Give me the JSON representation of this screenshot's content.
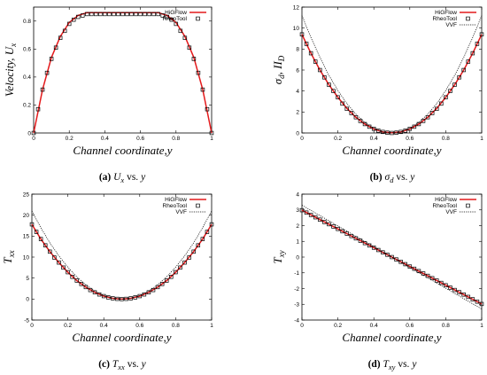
{
  "legend": {
    "entries": [
      {
        "label": "HiGFlow",
        "style": "line",
        "color": "#e41a1c"
      },
      {
        "label": "RheoTool",
        "style": "square-marker",
        "color": "#000000"
      },
      {
        "label": "VVF",
        "style": "dotted",
        "color": "#000000"
      }
    ],
    "placement": "top-right"
  },
  "captions": [
    {
      "id": "a",
      "letter": "(a)",
      "var": "U",
      "sub": "x",
      "vs": "vs.",
      "ax": "y"
    },
    {
      "id": "b",
      "letter": "(b)",
      "var": "σ",
      "sub": "d",
      "vs": "vs.",
      "ax": "y"
    },
    {
      "id": "c",
      "letter": "(c)",
      "var": "T",
      "sub": "xx",
      "vs": "vs.",
      "ax": "y"
    },
    {
      "id": "d",
      "letter": "(d)",
      "var": "T",
      "sub": "xy",
      "vs": "vs.",
      "ax": "y"
    }
  ],
  "chart_data": [
    {
      "id": "a",
      "type": "line",
      "xlabel": "Channel coordinate,y",
      "ylabel": "Velocity, U",
      "ylabel_sub": "x",
      "xlim": [
        0,
        1
      ],
      "ylim": [
        0,
        0.9
      ],
      "xticks": [
        "0",
        "0.2",
        "0.4",
        "0.6",
        "0.8",
        "1"
      ],
      "yticks": [
        "0",
        "0.2",
        "0.4",
        "0.6",
        "0.8"
      ],
      "yticks_values": [
        0,
        0.2,
        0.4,
        0.6,
        0.8
      ],
      "legend_entries": [
        "HiGFlow",
        "RheoTool"
      ],
      "series": [
        {
          "name": "HiGFlow",
          "x": [
            0,
            0.05,
            0.1,
            0.15,
            0.2,
            0.25,
            0.3,
            0.35,
            0.4,
            0.45,
            0.5,
            0.55,
            0.6,
            0.65,
            0.7,
            0.75,
            0.8,
            0.85,
            0.9,
            0.95,
            1
          ],
          "y": [
            0,
            0.31,
            0.54,
            0.69,
            0.79,
            0.84,
            0.86,
            0.86,
            0.86,
            0.86,
            0.86,
            0.86,
            0.86,
            0.86,
            0.86,
            0.84,
            0.79,
            0.69,
            0.54,
            0.31,
            0
          ]
        },
        {
          "name": "RheoTool",
          "x": [
            0,
            0.025,
            0.05,
            0.075,
            0.1,
            0.125,
            0.15,
            0.175,
            0.2,
            0.225,
            0.25,
            0.275,
            0.3,
            0.325,
            0.35,
            0.375,
            0.4,
            0.425,
            0.45,
            0.475,
            0.5,
            0.525,
            0.55,
            0.575,
            0.6,
            0.625,
            0.65,
            0.675,
            0.7,
            0.725,
            0.75,
            0.775,
            0.8,
            0.825,
            0.85,
            0.875,
            0.9,
            0.925,
            0.95,
            0.975,
            1
          ],
          "y": [
            0,
            0.17,
            0.31,
            0.43,
            0.53,
            0.61,
            0.68,
            0.73,
            0.78,
            0.81,
            0.83,
            0.84,
            0.85,
            0.85,
            0.85,
            0.85,
            0.85,
            0.85,
            0.85,
            0.85,
            0.85,
            0.85,
            0.85,
            0.85,
            0.85,
            0.85,
            0.85,
            0.85,
            0.85,
            0.84,
            0.83,
            0.81,
            0.78,
            0.73,
            0.68,
            0.61,
            0.53,
            0.43,
            0.31,
            0.17,
            0
          ]
        }
      ]
    },
    {
      "id": "b",
      "type": "line",
      "xlabel": "Channel coordinate,y",
      "ylabel": "σ",
      "ylabel_sub": "d",
      "ylabel_extra": ", II",
      "ylabel_extra_sub": "D",
      "xlim": [
        0,
        1
      ],
      "ylim": [
        0,
        12
      ],
      "xticks": [
        "0",
        "0.2",
        "0.4",
        "0.6",
        "0.8",
        "1"
      ],
      "yticks": [
        "0",
        "2",
        "4",
        "6",
        "8",
        "10",
        "12"
      ],
      "yticks_values": [
        0,
        2,
        4,
        6,
        8,
        10,
        12
      ],
      "legend_entries": [
        "HiGFlow",
        "RheoTool",
        "VVF"
      ],
      "series": [
        {
          "name": "HiGFlow",
          "x": [
            0,
            0.05,
            0.1,
            0.15,
            0.2,
            0.25,
            0.3,
            0.35,
            0.4,
            0.45,
            0.5,
            0.55,
            0.6,
            0.65,
            0.7,
            0.75,
            0.8,
            0.85,
            0.9,
            0.95,
            1
          ],
          "y": [
            9.4,
            7.6,
            6.0,
            4.6,
            3.4,
            2.35,
            1.5,
            0.85,
            0.38,
            0.1,
            0.02,
            0.1,
            0.38,
            0.85,
            1.5,
            2.35,
            3.4,
            4.6,
            6.0,
            7.6,
            9.4
          ]
        },
        {
          "name": "RheoTool",
          "x": [
            0,
            0.025,
            0.05,
            0.075,
            0.1,
            0.125,
            0.15,
            0.175,
            0.2,
            0.225,
            0.25,
            0.275,
            0.3,
            0.325,
            0.35,
            0.375,
            0.4,
            0.425,
            0.45,
            0.475,
            0.5,
            0.525,
            0.55,
            0.575,
            0.6,
            0.625,
            0.65,
            0.675,
            0.7,
            0.725,
            0.75,
            0.775,
            0.8,
            0.825,
            0.85,
            0.875,
            0.9,
            0.925,
            0.95,
            0.975,
            1
          ],
          "y": [
            9.4,
            8.5,
            7.6,
            6.8,
            6.0,
            5.3,
            4.6,
            4.0,
            3.4,
            2.8,
            2.3,
            1.9,
            1.5,
            1.15,
            0.85,
            0.6,
            0.4,
            0.22,
            0.1,
            0.03,
            0.0,
            0.03,
            0.1,
            0.22,
            0.4,
            0.6,
            0.85,
            1.15,
            1.5,
            1.9,
            2.3,
            2.8,
            3.4,
            4.0,
            4.6,
            5.3,
            6.0,
            6.8,
            7.6,
            8.5,
            9.4
          ]
        },
        {
          "name": "VVF",
          "x": [
            0,
            0.05,
            0.1,
            0.15,
            0.2,
            0.25,
            0.3,
            0.35,
            0.4,
            0.45,
            0.5,
            0.55,
            0.6,
            0.65,
            0.7,
            0.75,
            0.8,
            0.85,
            0.9,
            0.95,
            1
          ],
          "y": [
            11.2,
            9.1,
            7.2,
            5.5,
            4.05,
            2.8,
            1.8,
            1.0,
            0.45,
            0.11,
            0.0,
            0.11,
            0.45,
            1.0,
            1.8,
            2.8,
            4.05,
            5.5,
            7.2,
            9.1,
            11.2
          ]
        }
      ]
    },
    {
      "id": "c",
      "type": "line",
      "xlabel": "Channel coordinate,y",
      "ylabel": "T",
      "ylabel_sub": "xx",
      "xlim": [
        0,
        1
      ],
      "ylim": [
        -5,
        25
      ],
      "xticks": [
        "0",
        "0.2",
        "0.4",
        "0.6",
        "0.8",
        "1"
      ],
      "yticks": [
        "-5",
        "0",
        "5",
        "10",
        "15",
        "20",
        "25"
      ],
      "yticks_values": [
        -5,
        0,
        5,
        10,
        15,
        20,
        25
      ],
      "legend_entries": [
        "HiGFlow",
        "RheoTool",
        "VVF"
      ],
      "series": [
        {
          "name": "HiGFlow",
          "x": [
            0,
            0.05,
            0.1,
            0.15,
            0.2,
            0.25,
            0.3,
            0.35,
            0.4,
            0.45,
            0.5,
            0.55,
            0.6,
            0.65,
            0.7,
            0.75,
            0.8,
            0.85,
            0.9,
            0.95,
            1
          ],
          "y": [
            17.8,
            14.3,
            11.3,
            8.7,
            6.4,
            4.4,
            2.85,
            1.6,
            0.7,
            0.18,
            0.0,
            0.18,
            0.7,
            1.6,
            2.85,
            4.4,
            6.4,
            8.7,
            11.3,
            14.3,
            17.8
          ]
        },
        {
          "name": "RheoTool",
          "x": [
            0,
            0.025,
            0.05,
            0.075,
            0.1,
            0.125,
            0.15,
            0.175,
            0.2,
            0.225,
            0.25,
            0.275,
            0.3,
            0.325,
            0.35,
            0.375,
            0.4,
            0.425,
            0.45,
            0.475,
            0.5,
            0.525,
            0.55,
            0.575,
            0.6,
            0.625,
            0.65,
            0.675,
            0.7,
            0.725,
            0.75,
            0.775,
            0.8,
            0.825,
            0.85,
            0.875,
            0.9,
            0.925,
            0.95,
            0.975,
            1
          ],
          "y": [
            17.8,
            16.0,
            14.3,
            12.8,
            11.3,
            9.9,
            8.7,
            7.5,
            6.4,
            5.3,
            4.4,
            3.6,
            2.85,
            2.15,
            1.6,
            1.1,
            0.7,
            0.4,
            0.18,
            0.05,
            0.0,
            0.05,
            0.18,
            0.4,
            0.7,
            1.1,
            1.6,
            2.15,
            2.85,
            3.6,
            4.4,
            5.3,
            6.4,
            7.5,
            8.7,
            9.9,
            11.3,
            12.8,
            14.3,
            16.0,
            17.8
          ]
        },
        {
          "name": "VVF",
          "x": [
            0,
            0.05,
            0.1,
            0.15,
            0.2,
            0.25,
            0.3,
            0.35,
            0.4,
            0.45,
            0.5,
            0.55,
            0.6,
            0.65,
            0.7,
            0.75,
            0.8,
            0.85,
            0.9,
            0.95,
            1
          ],
          "y": [
            21.0,
            17.0,
            13.4,
            10.3,
            7.6,
            5.3,
            3.4,
            1.9,
            0.85,
            0.21,
            0.0,
            0.21,
            0.85,
            1.9,
            3.4,
            5.3,
            7.6,
            10.3,
            13.4,
            17.0,
            21.0
          ]
        }
      ]
    },
    {
      "id": "d",
      "type": "line",
      "xlabel": "Channel coordinate,y",
      "ylabel": "T",
      "ylabel_sub": "xy",
      "xlim": [
        0,
        1
      ],
      "ylim": [
        -4,
        4
      ],
      "xticks": [
        "0",
        "0.2",
        "0.4",
        "0.6",
        "0.8",
        "1"
      ],
      "yticks": [
        "-4",
        "-3",
        "-2",
        "-1",
        "0",
        "1",
        "2",
        "3",
        "4"
      ],
      "yticks_values": [
        -4,
        -3,
        -2,
        -1,
        0,
        1,
        2,
        3,
        4
      ],
      "legend_entries": [
        "HiGFlow",
        "RheoTool",
        "VVF"
      ],
      "series": [
        {
          "name": "HiGFlow",
          "x": [
            0,
            1
          ],
          "y": [
            2.98,
            -2.98
          ]
        },
        {
          "name": "RheoTool",
          "x": [
            0,
            0.025,
            0.05,
            0.075,
            0.1,
            0.125,
            0.15,
            0.175,
            0.2,
            0.225,
            0.25,
            0.275,
            0.3,
            0.325,
            0.35,
            0.375,
            0.4,
            0.425,
            0.45,
            0.475,
            0.5,
            0.525,
            0.55,
            0.575,
            0.6,
            0.625,
            0.65,
            0.675,
            0.7,
            0.725,
            0.75,
            0.775,
            0.8,
            0.825,
            0.85,
            0.875,
            0.9,
            0.925,
            0.95,
            0.975,
            1
          ],
          "y": [
            2.98,
            2.83,
            2.68,
            2.53,
            2.38,
            2.23,
            2.09,
            1.94,
            1.79,
            1.64,
            1.49,
            1.34,
            1.19,
            1.04,
            0.89,
            0.74,
            0.6,
            0.45,
            0.3,
            0.15,
            0.0,
            -0.15,
            -0.3,
            -0.45,
            -0.6,
            -0.74,
            -0.89,
            -1.04,
            -1.19,
            -1.34,
            -1.49,
            -1.64,
            -1.79,
            -1.94,
            -2.09,
            -2.23,
            -2.38,
            -2.53,
            -2.68,
            -2.83,
            -2.98
          ]
        },
        {
          "name": "VVF",
          "x": [
            0,
            1
          ],
          "y": [
            3.3,
            -3.3
          ]
        }
      ]
    }
  ]
}
